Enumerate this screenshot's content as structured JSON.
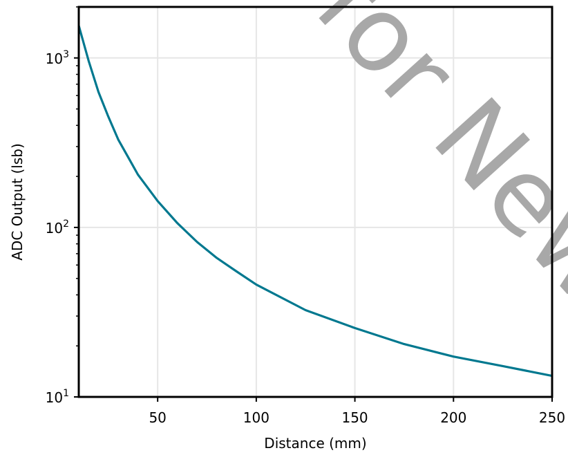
{
  "chart_data": {
    "type": "line",
    "title": "",
    "xlabel": "Distance (mm)",
    "ylabel": "ADC Output (lsb)",
    "xlim": [
      10,
      250
    ],
    "ylim": [
      10,
      2000
    ],
    "yscale": "log",
    "grid": true,
    "line_color": "#00788f",
    "x_ticks": [
      {
        "value": 50,
        "label": "50"
      },
      {
        "value": 100,
        "label": "100"
      },
      {
        "value": 150,
        "label": "150"
      },
      {
        "value": 200,
        "label": "200"
      },
      {
        "value": 250,
        "label": "250"
      }
    ],
    "y_ticks": [
      {
        "value": 10,
        "base": "10",
        "exp": "1"
      },
      {
        "value": 100,
        "base": "10",
        "exp": "2"
      },
      {
        "value": 1000,
        "base": "10",
        "exp": "3"
      }
    ],
    "series": [
      {
        "x": [
          10,
          15,
          20,
          25,
          30,
          35,
          40,
          50,
          60,
          70,
          80,
          90,
          100,
          125,
          150,
          175,
          200,
          225,
          250
        ],
        "values": [
          1550,
          960,
          630,
          450,
          330,
          260,
          205,
          143,
          106,
          82,
          66,
          55,
          46,
          32.5,
          25.5,
          20.5,
          17.3,
          15.2,
          13.3
        ]
      }
    ]
  },
  "watermark": {
    "text": "for New"
  }
}
